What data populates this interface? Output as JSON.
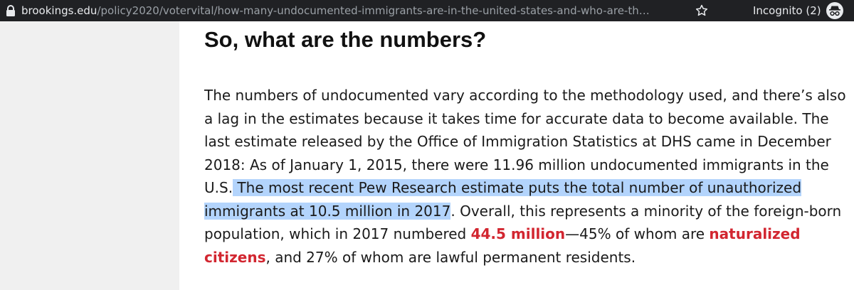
{
  "browser": {
    "url_domain": "brookings.edu",
    "url_path": "/policy2020/votervital/how-many-undocumented-immigrants-are-in-the-united-states-and-who-are-th…",
    "incognito_label": "Incognito (2)"
  },
  "article": {
    "title": "So, what are the numbers?",
    "p1": {
      "l1": "The numbers of undocumented vary according to the methodology used, and there’s also",
      "l2": "a lag in the estimates because it takes time for accurate data to become available. The",
      "l3": "last estimate released by the Office of Immigration Statistics at DHS came in December",
      "l4": "2018: As of January 1, 2015, there were 11.96 million undocumented immigrants in the",
      "l5_pre": "U.S.",
      "l5_hl": " The most recent Pew Research estimate puts the total number of unauthorized",
      "l6_hl": "immigrants at 10.5 million in 2017",
      "l6_post": ". Overall, this represents a minority of the foreign-born",
      "l7_pre": "population, which in 2017 numbered ",
      "l7_link1": "44.5 million",
      "l7_mid": "—45% of whom are ",
      "l7_link2": "naturalized",
      "l8_link2": "citizens",
      "l8_post": ", and 27% of whom are lawful permanent residents."
    }
  },
  "colors": {
    "highlight": "#b3d4fc",
    "link_red": "#d22630",
    "chrome_bar": "#202124"
  },
  "icons": [
    "lock-icon",
    "star-icon",
    "incognito-icon"
  ]
}
